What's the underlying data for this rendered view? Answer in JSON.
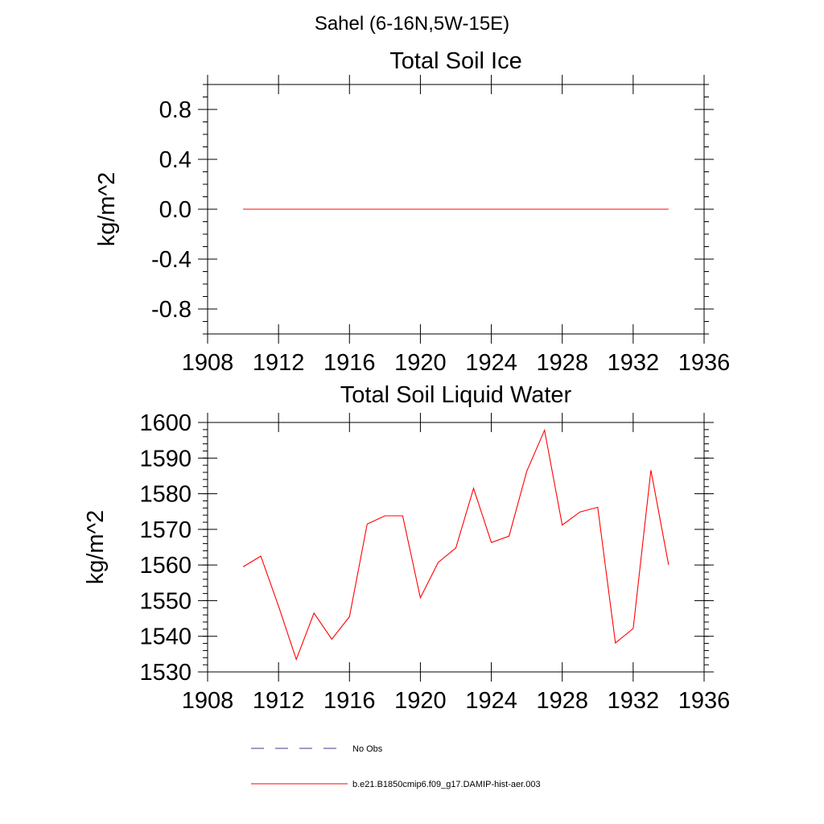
{
  "suptitle": "Sahel (6-16N,5W-15E)",
  "chart_data": [
    {
      "type": "line",
      "title": "Total Soil Ice",
      "xlabel": "",
      "ylabel": "kg/m^2",
      "xlim": [
        1908,
        1936
      ],
      "ylim": [
        -1.0,
        1.0
      ],
      "xticks": [
        1908,
        1912,
        1916,
        1920,
        1924,
        1928,
        1932,
        1936
      ],
      "yticks": [
        -0.8,
        -0.4,
        0.0,
        0.4,
        0.8
      ],
      "ytick_labels": [
        "-0.8",
        "-0.4",
        "0.0",
        "0.4",
        "0.8"
      ],
      "x": [
        1910,
        1911,
        1912,
        1913,
        1914,
        1915,
        1916,
        1917,
        1918,
        1919,
        1920,
        1921,
        1922,
        1923,
        1924,
        1925,
        1926,
        1927,
        1928,
        1929,
        1930,
        1931,
        1932,
        1933,
        1934
      ],
      "series": [
        {
          "name": "b.e21.B1850cmip6.f09_g17.DAMIP-hist-aer.003",
          "color": "#ff0000",
          "values": [
            0,
            0,
            0,
            0,
            0,
            0,
            0,
            0,
            0,
            0,
            0,
            0,
            0,
            0,
            0,
            0,
            0,
            0,
            0,
            0,
            0,
            0,
            0,
            0,
            0
          ]
        }
      ],
      "grid": false
    },
    {
      "type": "line",
      "title": "Total Soil Liquid Water",
      "xlabel": "",
      "ylabel": "kg/m^2",
      "xlim": [
        1908,
        1936
      ],
      "ylim": [
        1530,
        1600
      ],
      "xticks": [
        1908,
        1912,
        1916,
        1920,
        1924,
        1928,
        1932,
        1936
      ],
      "yticks": [
        1530,
        1540,
        1550,
        1560,
        1570,
        1580,
        1590,
        1600
      ],
      "ytick_labels": [
        "1530",
        "1540",
        "1550",
        "1560",
        "1570",
        "1580",
        "1590",
        "1600"
      ],
      "x": [
        1910,
        1911,
        1912,
        1913,
        1914,
        1915,
        1916,
        1917,
        1918,
        1919,
        1920,
        1921,
        1922,
        1923,
        1924,
        1925,
        1926,
        1927,
        1928,
        1929,
        1930,
        1931,
        1932,
        1933,
        1934
      ],
      "series": [
        {
          "name": "b.e21.B1850cmip6.f09_g17.DAMIP-hist-aer.003",
          "color": "#ff0000",
          "values": [
            1559.5,
            1562.5,
            1548.5,
            1533.5,
            1546.5,
            1539.2,
            1545.5,
            1571.5,
            1573.8,
            1573.8,
            1550.8,
            1560.7,
            1564.8,
            1581.5,
            1566.3,
            1568.1,
            1586.3,
            1597.8,
            1571.2,
            1574.9,
            1576.2,
            1538.1,
            1542.2,
            1586.6,
            1560.0
          ]
        }
      ],
      "grid": false
    }
  ],
  "legend": {
    "items": [
      {
        "label": "No Obs",
        "color": "#3c3c8c",
        "style": "dashed"
      },
      {
        "label": "b.e21.B1850cmip6.f09_g17.DAMIP-hist-aer.003",
        "color": "#ff0000",
        "style": "solid"
      }
    ]
  }
}
